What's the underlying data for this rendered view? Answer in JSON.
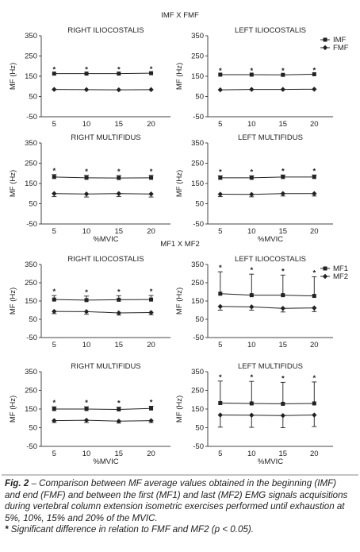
{
  "chart_data": [
    {
      "type": "line",
      "suptitle": "IMF X FMF",
      "title": "RIGHT ILIOCOSTALIS",
      "ylabel": "MF (Hz)",
      "categories": [
        5,
        10,
        15,
        20
      ],
      "ylim": [
        -50,
        350
      ],
      "yticks": [
        -50,
        50,
        150,
        250,
        350
      ],
      "significance": [
        "*",
        "*",
        "*",
        "*"
      ],
      "series": [
        {
          "color": "#222222",
          "marker": "square",
          "values": [
            163,
            163,
            163,
            165
          ]
        },
        {
          "color": "#222222",
          "marker": "diamond",
          "values": [
            85,
            84,
            83,
            84
          ]
        }
      ]
    },
    {
      "type": "line",
      "title": "LEFT ILIOCOSTALIS",
      "ylabel": "MF (Hz)",
      "categories": [
        5,
        10,
        15,
        20
      ],
      "ylim": [
        -50,
        350
      ],
      "yticks": [
        -50,
        50,
        150,
        250,
        350
      ],
      "significance": [
        "*",
        "*",
        "*",
        "*"
      ],
      "legend": "upper right",
      "series": [
        {
          "name": "IMF",
          "color": "#222222",
          "marker": "square",
          "values": [
            158,
            158,
            157,
            160
          ]
        },
        {
          "name": "FMF",
          "color": "#222222",
          "marker": "diamond",
          "values": [
            83,
            85,
            85,
            86
          ]
        }
      ]
    },
    {
      "type": "line",
      "title": "RIGHT MULTIFIDUS",
      "ylabel": "MF (Hz)",
      "xlabel": "%MVIC",
      "categories": [
        5,
        10,
        15,
        20
      ],
      "ylim": [
        -50,
        350
      ],
      "yticks": [
        -50,
        50,
        150,
        250,
        350
      ],
      "significance": [
        "*",
        "*",
        "*",
        "*"
      ],
      "series": [
        {
          "color": "#222222",
          "marker": "square",
          "values": [
            182,
            178,
            177,
            178
          ],
          "errors": [
            12,
            12,
            12,
            12
          ]
        },
        {
          "color": "#222222",
          "marker": "diamond",
          "values": [
            100,
            98,
            100,
            98
          ],
          "errors": [
            15,
            15,
            15,
            15
          ]
        }
      ]
    },
    {
      "type": "line",
      "title": "LEFT MULTIFIDUS",
      "ylabel": "MF (Hz)",
      "xlabel": "%MVIC",
      "categories": [
        5,
        10,
        15,
        20
      ],
      "ylim": [
        -50,
        350
      ],
      "yticks": [
        -50,
        50,
        150,
        250,
        350
      ],
      "significance": [
        "*",
        "*",
        "*",
        "*"
      ],
      "series": [
        {
          "color": "#222222",
          "marker": "square",
          "values": [
            178,
            178,
            182,
            182
          ],
          "errors": [
            10,
            10,
            10,
            10
          ]
        },
        {
          "color": "#222222",
          "marker": "diamond",
          "values": [
            97,
            96,
            100,
            100
          ],
          "errors": [
            12,
            12,
            12,
            12
          ]
        }
      ]
    },
    {
      "type": "line",
      "suptitle": "MF1 X MF2",
      "title": "RIGHT ILIOCOSTALIS",
      "ylabel": "MF (Hz)",
      "categories": [
        5,
        10,
        15,
        20
      ],
      "ylim": [
        -50,
        350
      ],
      "yticks": [
        -50,
        50,
        150,
        250,
        350
      ],
      "significance": [
        "*",
        "*",
        "*",
        "*"
      ],
      "series": [
        {
          "color": "#222222",
          "marker": "square",
          "values": [
            158,
            155,
            157,
            158
          ],
          "errors": [
            22,
            22,
            22,
            22
          ]
        },
        {
          "color": "#222222",
          "marker": "diamond",
          "values": [
            93,
            92,
            85,
            87
          ],
          "errors": [
            12,
            14,
            12,
            12
          ]
        }
      ]
    },
    {
      "type": "line",
      "title": "LEFT ILIOCOSTALIS",
      "ylabel": "MF (Hz)",
      "categories": [
        5,
        10,
        15,
        20
      ],
      "ylim": [
        -50,
        350
      ],
      "yticks": [
        -50,
        50,
        150,
        250,
        350
      ],
      "significance": [
        "*",
        "*",
        "*",
        "*"
      ],
      "legend": "upper right",
      "series": [
        {
          "name": "MF1",
          "color": "#222222",
          "marker": "square",
          "values": [
            190,
            182,
            182,
            178
          ],
          "errors": [
            120,
            115,
            110,
            105
          ]
        },
        {
          "name": "MF2",
          "color": "#222222",
          "marker": "diamond",
          "values": [
            120,
            118,
            110,
            112
          ],
          "errors": [
            20,
            18,
            20,
            20
          ]
        }
      ]
    },
    {
      "type": "line",
      "title": "RIGHT MULTIFIDUS",
      "ylabel": "MF (Hz)",
      "xlabel": "%MVIC",
      "categories": [
        5,
        10,
        15,
        20
      ],
      "ylim": [
        -50,
        350
      ],
      "yticks": [
        -50,
        50,
        150,
        250,
        350
      ],
      "significance": [
        "*",
        "*",
        "*",
        "*"
      ],
      "series": [
        {
          "color": "#222222",
          "marker": "square",
          "values": [
            150,
            150,
            148,
            153
          ],
          "errors": [
            12,
            12,
            12,
            12
          ]
        },
        {
          "color": "#222222",
          "marker": "diamond",
          "values": [
            88,
            90,
            85,
            88
          ],
          "errors": [
            10,
            12,
            10,
            10
          ]
        }
      ]
    },
    {
      "type": "line",
      "title": "LEFT MULTIFIDUS",
      "ylabel": "MF (Hz)",
      "xlabel": "%MVIC",
      "categories": [
        5,
        10,
        15,
        20
      ],
      "ylim": [
        -50,
        350
      ],
      "yticks": [
        -50,
        50,
        150,
        250,
        350
      ],
      "significance": [
        "*",
        "*",
        "*",
        "*"
      ],
      "series": [
        {
          "color": "#222222",
          "marker": "square",
          "values": [
            182,
            180,
            178,
            180
          ],
          "errors": [
            118,
            118,
            115,
            115
          ]
        },
        {
          "color": "#222222",
          "marker": "diamond",
          "values": [
            118,
            117,
            115,
            118
          ],
          "errors": [
            65,
            65,
            65,
            62
          ]
        }
      ]
    }
  ],
  "caption": {
    "label": "Fig. 2",
    "text": "– Comparison between MF average values obtained in the beginning (IMF) and end (FMF) and between the first (MF1) and last (MF2) EMG signals acquisitions during vertebral column extension isometric exercises performed until exhaustion at 5%, 10%, 15% and 20% of the MVIC.",
    "note_mark": "*",
    "note": "Significant difference in relation to FMF and MF2 (p < 0.05)."
  }
}
